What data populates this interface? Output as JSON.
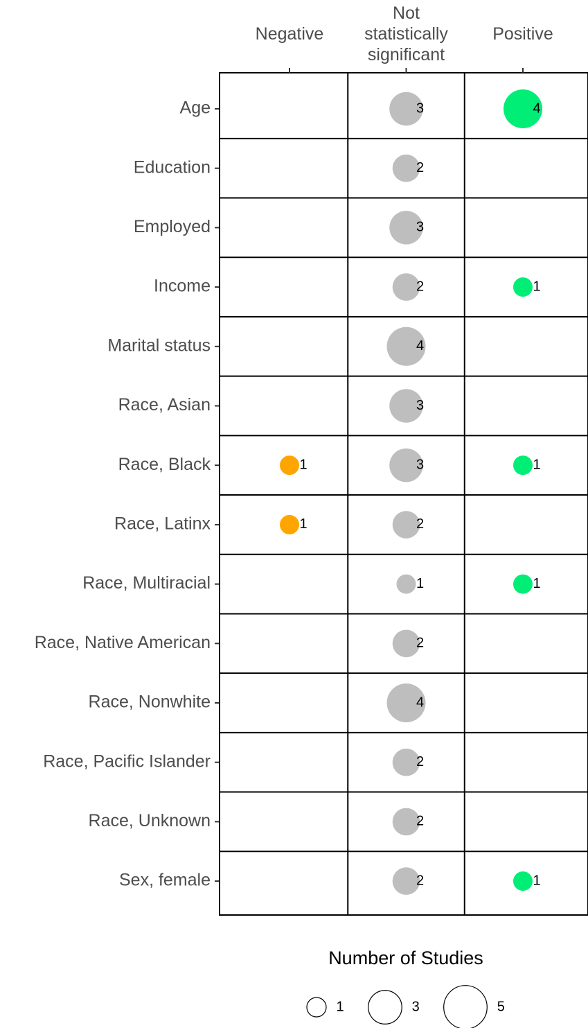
{
  "chart_data": {
    "type": "bubble",
    "categories": [
      "Age",
      "Education",
      "Employed",
      "Income",
      "Marital status",
      "Race, Asian",
      "Race, Black",
      "Race, Latinx",
      "Race, Multiracial",
      "Race, Native American",
      "Race, Nonwhite",
      "Race, Pacific Islander",
      "Race, Unknown",
      "Sex, female"
    ],
    "series": [
      {
        "name": "Negative",
        "color": "#ffa500",
        "values": [
          null,
          null,
          null,
          null,
          null,
          null,
          1,
          1,
          null,
          null,
          null,
          null,
          null,
          null
        ]
      },
      {
        "name": "Not statistically significant",
        "color": "#bebebe",
        "values": [
          3,
          2,
          3,
          2,
          4,
          3,
          3,
          2,
          1,
          2,
          4,
          2,
          2,
          2
        ]
      },
      {
        "name": "Positive",
        "color": "#00ee76",
        "values": [
          4,
          null,
          null,
          1,
          null,
          null,
          1,
          null,
          1,
          null,
          null,
          null,
          null,
          1
        ]
      }
    ],
    "size_legend": {
      "title": "Number of Studies",
      "values": [
        1,
        3,
        5
      ]
    }
  }
}
